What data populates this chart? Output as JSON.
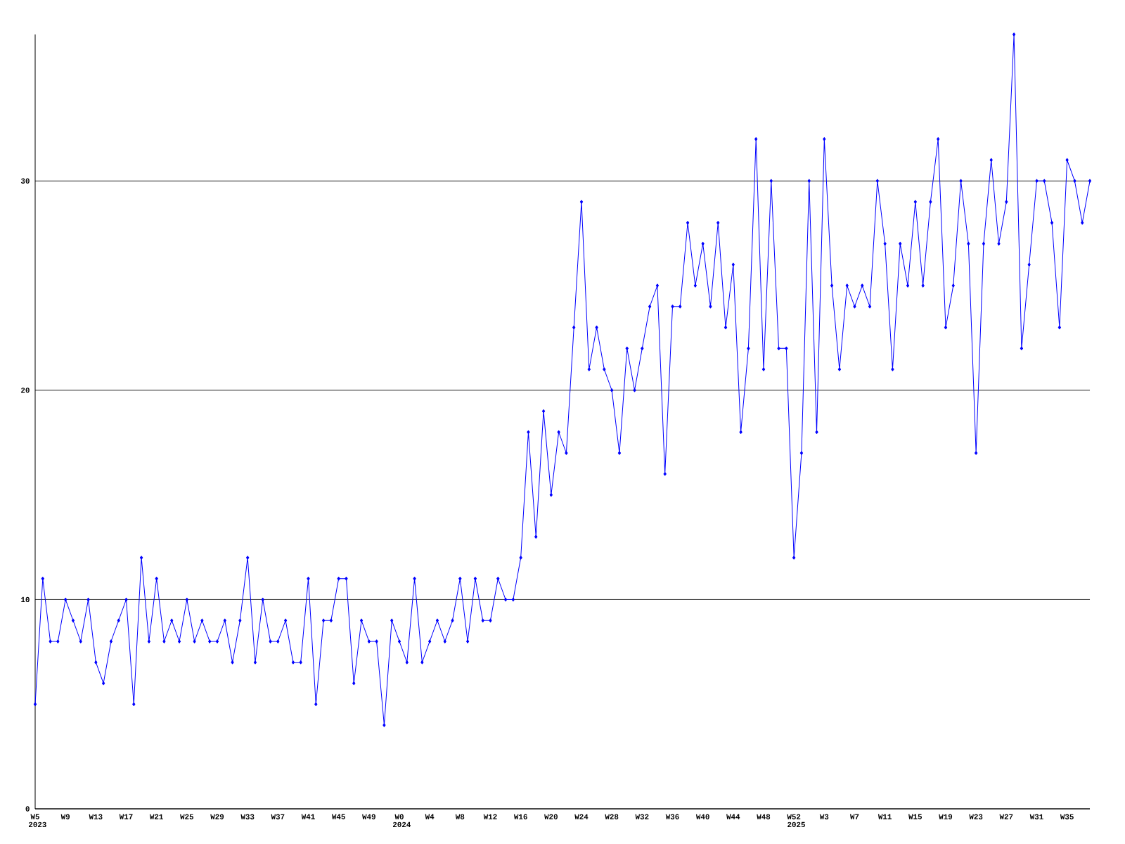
{
  "chart_data": {
    "type": "line",
    "categories": [
      "W5",
      null,
      null,
      null,
      "W9",
      null,
      null,
      null,
      "W13",
      null,
      null,
      null,
      "W17",
      null,
      null,
      null,
      "W21",
      null,
      null,
      null,
      "W25",
      null,
      null,
      null,
      "W29",
      null,
      null,
      null,
      "W33",
      null,
      null,
      null,
      "W37",
      null,
      null,
      null,
      "W41",
      null,
      null,
      null,
      "W45",
      null,
      null,
      null,
      "W49",
      null,
      null,
      null,
      "W0",
      null,
      null,
      null,
      "W4",
      null,
      null,
      null,
      "W8",
      null,
      null,
      null,
      "W12",
      null,
      null,
      null,
      "W16",
      null,
      null,
      null,
      "W20",
      null,
      null,
      null,
      "W24",
      null,
      null,
      null,
      "W28",
      null,
      null,
      null,
      "W32",
      null,
      null,
      null,
      "W36",
      null,
      null,
      null,
      "W40",
      null,
      null,
      null,
      "W44",
      null,
      null,
      null,
      "W48",
      null,
      null,
      null,
      "W52",
      null,
      null,
      null,
      "W3",
      null,
      null,
      null,
      "W7",
      null,
      null,
      null,
      "W11",
      null,
      null,
      null,
      "W15",
      null,
      null,
      null,
      "W19",
      null,
      null,
      null,
      "W23",
      null,
      null,
      null,
      "W27",
      null,
      null,
      null,
      "W31",
      null,
      null,
      null,
      "W35",
      null,
      null,
      null
    ],
    "values": [
      5,
      11,
      8,
      8,
      10,
      9,
      8,
      10,
      7,
      6,
      8,
      9,
      10,
      5,
      12,
      8,
      11,
      8,
      9,
      8,
      10,
      8,
      9,
      8,
      8,
      9,
      7,
      9,
      12,
      7,
      10,
      8,
      8,
      9,
      7,
      7,
      11,
      5,
      9,
      9,
      11,
      11,
      6,
      9,
      8,
      8,
      4,
      9,
      8,
      7,
      11,
      7,
      8,
      9,
      8,
      9,
      11,
      8,
      11,
      9,
      9,
      11,
      10,
      10,
      12,
      18,
      13,
      19,
      15,
      18,
      17,
      23,
      29,
      21,
      23,
      21,
      20,
      17,
      22,
      20,
      22,
      24,
      25,
      16,
      24,
      24,
      28,
      25,
      27,
      24,
      28,
      23,
      26,
      18,
      22,
      32,
      21,
      30,
      22,
      22,
      12,
      17,
      30,
      18,
      32,
      25,
      21,
      25,
      24,
      25,
      24,
      30,
      27,
      21,
      27,
      25,
      29,
      25,
      29,
      32,
      23,
      25,
      30,
      27,
      17,
      27,
      31,
      27,
      29,
      37,
      22,
      26,
      30,
      30,
      28,
      23,
      31,
      30,
      28,
      30
    ],
    "color": "#0000ff",
    "ylim": [
      0,
      37
    ],
    "yticks": [
      0,
      10,
      20,
      30
    ],
    "grid": "y",
    "marker": "diamond",
    "annotations": [
      "2023",
      "2024",
      "2025"
    ]
  }
}
